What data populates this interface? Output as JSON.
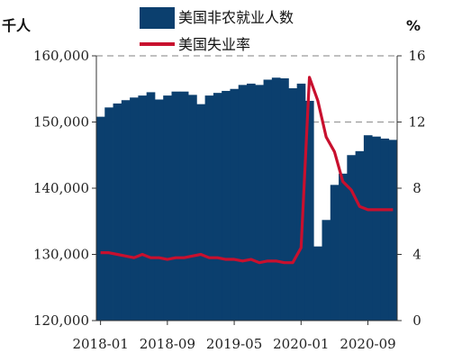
{
  "chart_data": {
    "type": "bar",
    "left_unit": "千人",
    "right_unit": "%",
    "legend_position": "top",
    "colors": {
      "bar": "#0b3f6e",
      "line": "#c8102e",
      "dash": "#9a9a9a"
    },
    "ylim": [
      120000,
      160000
    ],
    "y_ticks": [
      "120,000",
      "130,000",
      "140,000",
      "150,000",
      "160,000"
    ],
    "y_tick_values": [
      120000,
      130000,
      140000,
      150000,
      160000
    ],
    "y2lim": [
      0,
      16
    ],
    "y2_ticks": [
      "0",
      "4",
      "8",
      "12",
      "16"
    ],
    "y2_tick_values": [
      0,
      4,
      8,
      12,
      16
    ],
    "x_tick_labels": [
      "2018-01",
      "2018-09",
      "2019-05",
      "2020-01",
      "2020-09"
    ],
    "x_tick_indices": [
      0,
      8,
      16,
      24,
      32
    ],
    "categories": [
      "2018-01",
      "2018-02",
      "2018-03",
      "2018-04",
      "2018-05",
      "2018-06",
      "2018-07",
      "2018-08",
      "2018-09",
      "2018-10",
      "2018-11",
      "2018-12",
      "2019-01",
      "2019-02",
      "2019-03",
      "2019-04",
      "2019-05",
      "2019-06",
      "2019-07",
      "2019-08",
      "2019-09",
      "2019-10",
      "2019-11",
      "2019-12",
      "2020-01",
      "2020-02",
      "2020-03",
      "2020-04",
      "2020-05",
      "2020-06",
      "2020-07",
      "2020-08",
      "2020-09",
      "2020-10",
      "2020-11",
      "2020-12"
    ],
    "series": [
      {
        "name": "美国非农就业人数",
        "type": "bar",
        "axis": "left",
        "values": [
          150800,
          152200,
          152800,
          153300,
          153700,
          154000,
          154500,
          153400,
          154000,
          154600,
          154600,
          154100,
          152700,
          154000,
          154400,
          154700,
          155000,
          155600,
          155800,
          155600,
          156400,
          156700,
          156600,
          155100,
          155800,
          153200,
          131200,
          135200,
          140500,
          142200,
          145000,
          145600,
          148000,
          147800,
          147500,
          147300
        ]
      },
      {
        "name": "美国失业率",
        "type": "line",
        "axis": "right",
        "values": [
          4.1,
          4.1,
          4.0,
          3.9,
          3.8,
          4.0,
          3.8,
          3.8,
          3.7,
          3.8,
          3.8,
          3.9,
          4.0,
          3.8,
          3.8,
          3.7,
          3.7,
          3.6,
          3.7,
          3.5,
          3.6,
          3.6,
          3.5,
          3.5,
          4.4,
          14.7,
          13.3,
          11.1,
          10.2,
          8.4,
          7.9,
          6.9,
          6.7,
          6.7,
          6.7,
          6.7
        ]
      }
    ]
  }
}
